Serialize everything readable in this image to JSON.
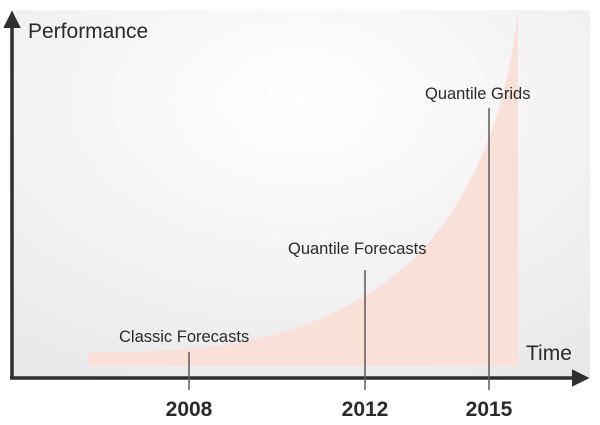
{
  "diagram": {
    "y_axis_label": "Performance",
    "x_axis_label": "Time",
    "milestones": [
      {
        "year": "2008",
        "label": "Classic Forecasts"
      },
      {
        "year": "2012",
        "label": "Quantile Forecasts"
      },
      {
        "year": "2015",
        "label": "Quantile Grids"
      }
    ],
    "colors": {
      "curve_fill": "#f9e1da",
      "axis": "#2f2f2f",
      "connector": "#5a5a5a",
      "background_top": "#ffffff",
      "background_bottom": "#ececec"
    }
  }
}
